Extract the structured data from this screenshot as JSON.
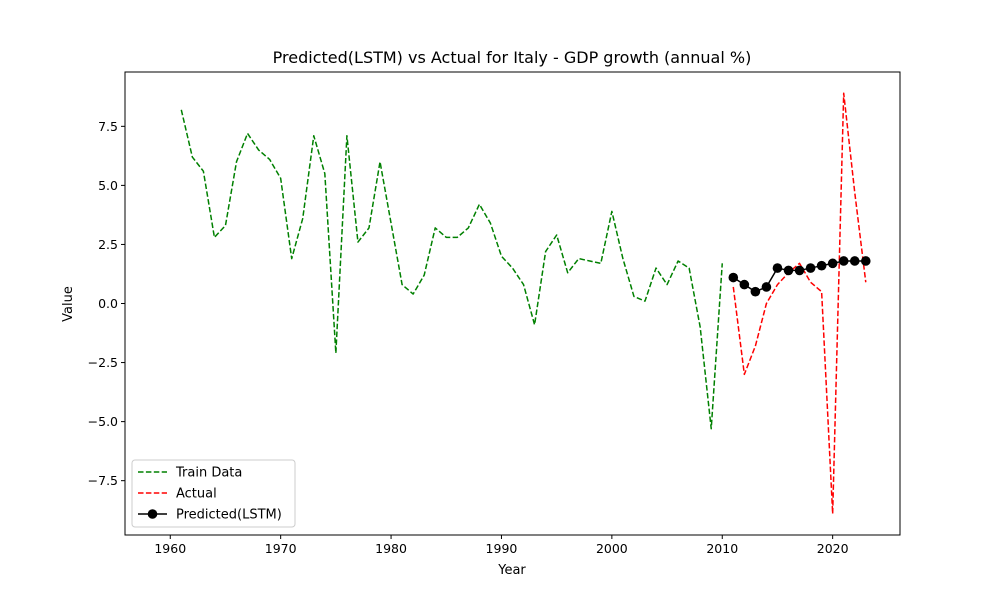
{
  "chart_data": {
    "type": "line",
    "title": "Predicted(LSTM) vs Actual for Italy - GDP growth (annual %)",
    "xlabel": "Year",
    "ylabel": "Value",
    "xlim": [
      1955.9,
      2026.1
    ],
    "ylim": [
      -9.8,
      9.8
    ],
    "xticks": [
      1960,
      1970,
      1980,
      1990,
      2000,
      2010,
      2020
    ],
    "yticks": [
      -7.5,
      -5.0,
      -2.5,
      0.0,
      2.5,
      5.0,
      7.5
    ],
    "ytick_labels": [
      "−7.5",
      "−5.0",
      "−2.5",
      "0.0",
      "2.5",
      "5.0",
      "7.5"
    ],
    "grid": false,
    "legend_position": "lower-left",
    "series": [
      {
        "name": "Train Data",
        "color": "#008000",
        "style": "dashed",
        "x": [
          1961,
          1962,
          1963,
          1964,
          1965,
          1966,
          1967,
          1968,
          1969,
          1970,
          1971,
          1972,
          1973,
          1974,
          1975,
          1976,
          1977,
          1978,
          1979,
          1980,
          1981,
          1982,
          1983,
          1984,
          1985,
          1986,
          1987,
          1988,
          1989,
          1990,
          1991,
          1992,
          1993,
          1994,
          1995,
          1996,
          1997,
          1998,
          1999,
          2000,
          2001,
          2002,
          2003,
          2004,
          2005,
          2006,
          2007,
          2008,
          2009,
          2010
        ],
        "y": [
          8.2,
          6.2,
          5.6,
          2.8,
          3.3,
          6.0,
          7.2,
          6.5,
          6.1,
          5.3,
          1.9,
          3.6,
          7.1,
          5.5,
          -2.1,
          7.1,
          2.6,
          3.2,
          6.0,
          3.4,
          0.8,
          0.4,
          1.2,
          3.2,
          2.8,
          2.8,
          3.2,
          4.2,
          3.4,
          2.0,
          1.5,
          0.8,
          -0.9,
          2.2,
          2.9,
          1.3,
          1.9,
          1.8,
          1.7,
          3.9,
          1.9,
          0.3,
          0.1,
          1.5,
          0.8,
          1.8,
          1.5,
          -1.0,
          -5.3,
          1.7
        ]
      },
      {
        "name": "Actual",
        "color": "#ff0000",
        "style": "dashed",
        "x": [
          2011,
          2012,
          2013,
          2014,
          2015,
          2016,
          2017,
          2018,
          2019,
          2020,
          2021,
          2022,
          2023
        ],
        "y": [
          0.7,
          -3.0,
          -1.8,
          0.0,
          0.8,
          1.3,
          1.7,
          0.9,
          0.5,
          -8.9,
          8.9,
          4.7,
          0.9
        ]
      },
      {
        "name": "Predicted(LSTM)",
        "color": "#000000",
        "style": "solid-markers",
        "x": [
          2011,
          2012,
          2013,
          2014,
          2015,
          2016,
          2017,
          2018,
          2019,
          2020,
          2021,
          2022,
          2023
        ],
        "y": [
          1.1,
          0.8,
          0.5,
          0.7,
          1.5,
          1.4,
          1.4,
          1.5,
          1.6,
          1.7,
          1.8,
          1.8,
          1.8
        ]
      }
    ]
  }
}
